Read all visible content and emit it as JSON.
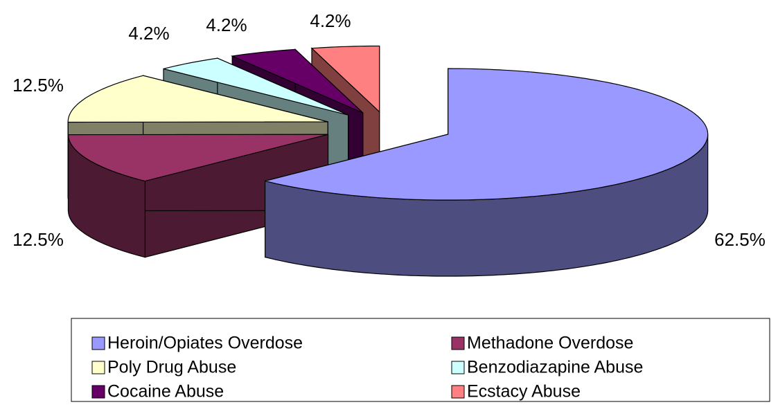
{
  "chart_data": {
    "type": "pie3d",
    "categories": [
      "Heroin/Opiates Overdose",
      "Methadone Overdose",
      "Poly Drug Abuse",
      "Benzodiazapine Abuse",
      "Cocaine Abuse",
      "Ecstacy Abuse"
    ],
    "values": [
      62.5,
      12.5,
      12.5,
      4.2,
      4.2,
      4.2
    ],
    "value_labels": [
      "62.5%",
      "12.5%",
      "12.5%",
      "4.2%",
      "4.2%",
      "4.2%"
    ],
    "colors": [
      "#9999ff",
      "#993366",
      "#ffffcc",
      "#ccffff",
      "#660066",
      "#ff8080"
    ],
    "legend": "bottom"
  }
}
